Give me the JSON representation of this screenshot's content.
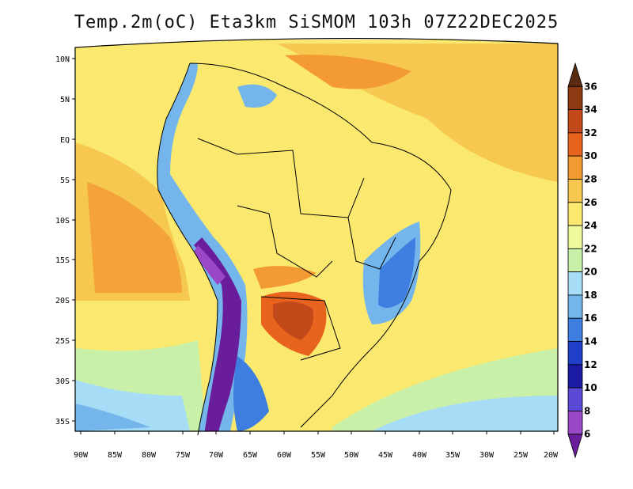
{
  "title": "Temp.2m(oC) Eta3km SiSMOM 103h 07Z22DEC2025",
  "lat_labels": [
    "10N",
    "5N",
    "EQ",
    "5S",
    "10S",
    "15S",
    "20S",
    "25S",
    "30S",
    "35S"
  ],
  "lon_labels": [
    "90W",
    "85W",
    "80W",
    "75W",
    "70W",
    "65W",
    "60W",
    "55W",
    "50W",
    "45W",
    "40W",
    "35W",
    "30W",
    "25W",
    "20W"
  ],
  "colorbar": {
    "labels": [
      "36",
      "34",
      "32",
      "30",
      "28",
      "26",
      "24",
      "22",
      "20",
      "18",
      "16",
      "14",
      "12",
      "10",
      "8",
      "6"
    ],
    "colors": [
      "#5a2b10",
      "#8b3a12",
      "#c2491a",
      "#e8641e",
      "#f39a33",
      "#f7c850",
      "#fbe96f",
      "#eefa9c",
      "#c8f0a8",
      "#a6dcf5",
      "#74b6ec",
      "#3d7ee0",
      "#1f3fc9",
      "#1a1aa3",
      "#5b4ad6",
      "#9a48c8",
      "#6a1d9a"
    ]
  }
}
